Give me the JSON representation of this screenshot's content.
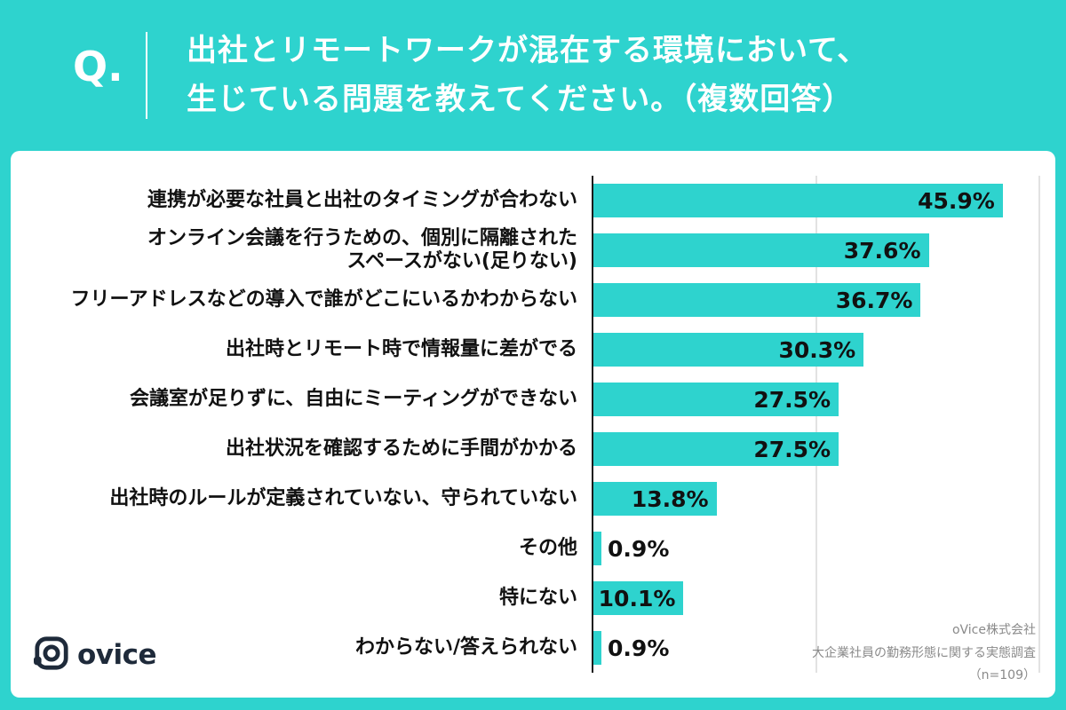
{
  "colors": {
    "background": "#2ED3CE",
    "bar": "#2ED3CE",
    "card": "#FFFFFF",
    "text": "#111111",
    "axis": "#1a1a1a",
    "gridline": "#E2E2E2",
    "source_text": "#8a8a8a",
    "logo": "#1E2A3A"
  },
  "header": {
    "q": "Q.",
    "title_lines": [
      "出社とリモートワークが混在する環境において、",
      "生じている問題を教えてください。（複数回答）"
    ]
  },
  "footer": {
    "logo_text": "ovice",
    "source_lines": [
      "oVice株式会社",
      "大企業社員の勤務形態に関する実態調査",
      "（n=109）"
    ]
  },
  "chart_data": {
    "type": "bar",
    "orientation": "horizontal",
    "title": "出社とリモートワークが混在する環境において、生じている問題を教えてください。（複数回答）",
    "categories": [
      "連携が必要な社員と出社のタイミングが合わない",
      "オンライン会議を行うための、個別に隔離された\nスペースがない(足りない)",
      "フリーアドレスなどの導入で誰がどこにいるかわからない",
      "出社時とリモート時で情報量に差がでる",
      "会議室が足りずに、自由にミーティングができない",
      "出社状況を確認するために手間がかかる",
      "出社時のルールが定義されていない、守られていない",
      "その他",
      "特にない",
      "わからない/答えられない"
    ],
    "values": [
      45.9,
      37.6,
      36.7,
      30.3,
      27.5,
      27.5,
      13.8,
      0.9,
      10.1,
      0.9
    ],
    "value_labels": [
      "45.9%",
      "37.6%",
      "36.7%",
      "30.3%",
      "27.5%",
      "27.5%",
      "13.8%",
      "0.9%",
      "10.1%",
      "0.9%"
    ],
    "xlim": [
      0,
      50
    ],
    "gridlines": [
      25,
      50
    ],
    "inside_label_threshold": 5,
    "legend": false,
    "grid": true
  }
}
